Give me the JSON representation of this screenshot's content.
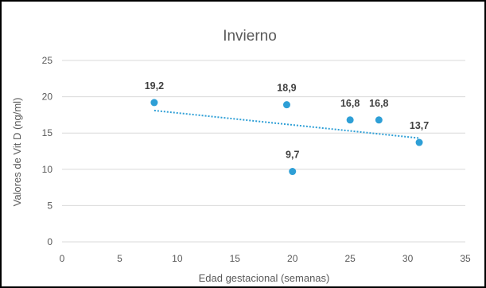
{
  "chart_data": {
    "type": "scatter",
    "title": "Invierno",
    "xlabel": "Edad gestacional (semanas)",
    "ylabel": "Valores de Vit D (ng/ml)",
    "xlim": [
      0,
      35
    ],
    "ylim": [
      0,
      25
    ],
    "x_ticks": [
      0,
      5,
      10,
      15,
      20,
      25,
      30,
      35
    ],
    "y_ticks": [
      0,
      5,
      10,
      15,
      20,
      25
    ],
    "grid": "horizontal",
    "legend": "none",
    "series": [
      {
        "points": [
          {
            "x": 8,
            "y": 19.2,
            "label": "19,2"
          },
          {
            "x": 19.5,
            "y": 18.9,
            "label": "18,9"
          },
          {
            "x": 20,
            "y": 9.7,
            "label": "9,7"
          },
          {
            "x": 25,
            "y": 16.8,
            "label": "16,8"
          },
          {
            "x": 27.5,
            "y": 16.8,
            "label": "16,8"
          },
          {
            "x": 31,
            "y": 13.7,
            "label": "13,7"
          }
        ],
        "color": "#2E9FD6"
      }
    ],
    "trendline": {
      "type": "linear",
      "style": "dotted",
      "color": "#2E9FD6",
      "x_start": 8,
      "y_start": 18.1,
      "x_end": 31,
      "y_end": 14.3
    },
    "colors": {
      "grid": "#D9D9D9",
      "text": "#595959",
      "data_label": "#404040",
      "frame": "#000000"
    }
  }
}
